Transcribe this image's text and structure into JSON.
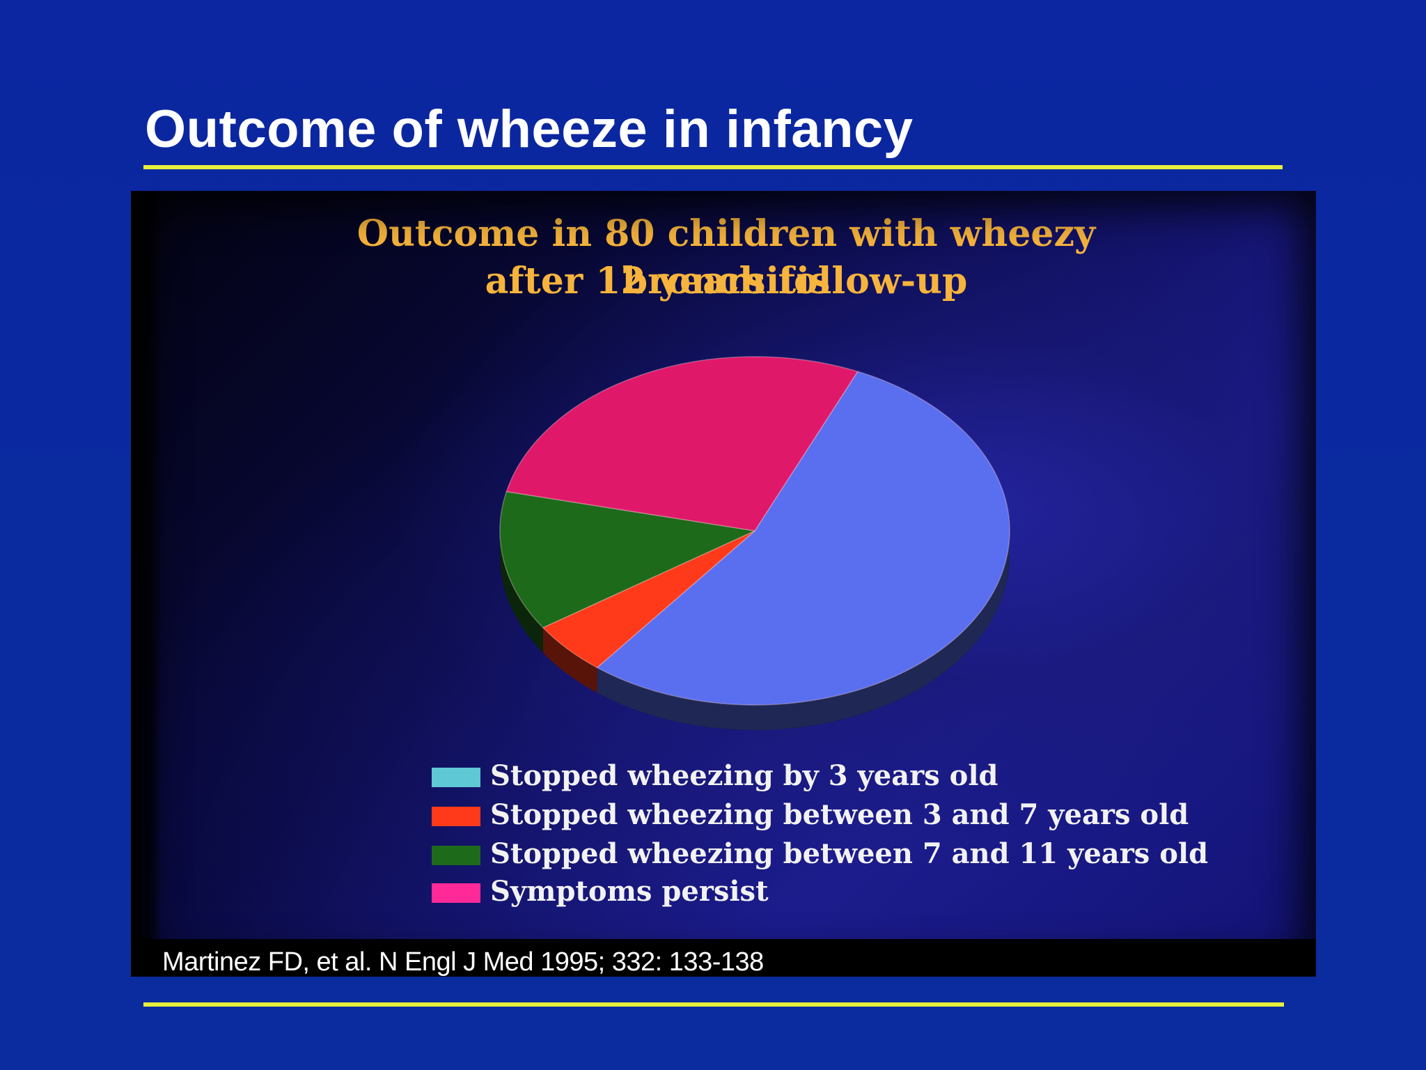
{
  "slide": {
    "title": "Outcome of wheeze in infancy",
    "citation": "Martinez FD, et al. N Engl J Med 1995; 332: 133-138",
    "background_color": "#0a2aa0",
    "rule_color": "#e8f03a"
  },
  "chart_data": {
    "type": "pie",
    "title_lines": [
      "Outcome in 80 children with wheezy bronchitis",
      "after 12 years follow-up"
    ],
    "title_color": "#f7b43c",
    "legend_position": "bottom",
    "categories": [
      "Stopped wheezing by 3 years old",
      "Stopped wheezing between 3 and 7 years old",
      "Stopped wheezing between 7 and 11 years old",
      "Symptoms persist"
    ],
    "values": [
      54,
      5,
      13,
      28
    ],
    "pie_colors": [
      "#5a6ef0",
      "#ff3a1a",
      "#1d6a1a",
      "#e0186a"
    ],
    "legend_colors": [
      "#5ec8d4",
      "#ff3a1a",
      "#1d6a1a",
      "#ff2a98"
    ]
  }
}
